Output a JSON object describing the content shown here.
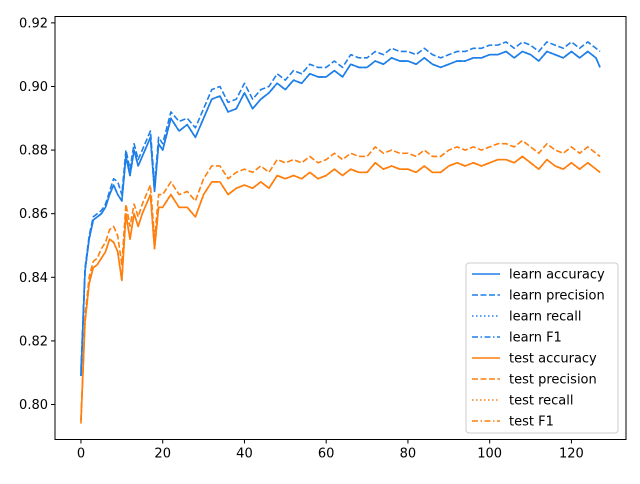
{
  "chart_data": {
    "type": "line",
    "title": "",
    "xlabel": "",
    "ylabel": "",
    "xlim": [
      -6.35,
      133.35
    ],
    "ylim": [
      0.789,
      0.922
    ],
    "xticks": [
      0,
      20,
      40,
      60,
      80,
      100,
      120
    ],
    "xtick_labels": [
      "0",
      "20",
      "40",
      "60",
      "80",
      "100",
      "120"
    ],
    "yticks": [
      0.8,
      0.82,
      0.84,
      0.86,
      0.88,
      0.9,
      0.92
    ],
    "ytick_labels": [
      "0.80",
      "0.82",
      "0.84",
      "0.86",
      "0.88",
      "0.90",
      "0.92"
    ],
    "grid": false,
    "legend_position": "lower-right",
    "colors": {
      "learn": "#1f7fe8",
      "test": "#ff7f0e"
    },
    "series": [
      {
        "name": "learn accuracy",
        "style": "solid",
        "color": "#1f7fe8"
      },
      {
        "name": "learn precision",
        "style": "dashed",
        "color": "#1f7fe8"
      },
      {
        "name": "learn recall",
        "style": "dotted",
        "color": "#1f7fe8"
      },
      {
        "name": "learn F1",
        "style": "dashdot",
        "color": "#1f7fe8"
      },
      {
        "name": "test accuracy",
        "style": "solid",
        "color": "#ff7f0e"
      },
      {
        "name": "test precision",
        "style": "dashed",
        "color": "#ff7f0e"
      },
      {
        "name": "test recall",
        "style": "dotted",
        "color": "#ff7f0e"
      },
      {
        "name": "test F1",
        "style": "dashdot",
        "color": "#ff7f0e"
      }
    ],
    "x": [
      0,
      1,
      2,
      3,
      4,
      5,
      6,
      7,
      8,
      9,
      10,
      11,
      12,
      13,
      14,
      15,
      16,
      17,
      18,
      19,
      20,
      22,
      24,
      26,
      28,
      30,
      32,
      34,
      36,
      38,
      40,
      42,
      44,
      46,
      48,
      50,
      52,
      54,
      56,
      58,
      60,
      62,
      64,
      66,
      68,
      70,
      72,
      74,
      76,
      78,
      80,
      82,
      84,
      86,
      88,
      90,
      92,
      94,
      96,
      98,
      100,
      102,
      104,
      106,
      108,
      110,
      112,
      114,
      116,
      118,
      120,
      122,
      124,
      126,
      127
    ],
    "learn_accuracy": [
      0.809,
      0.842,
      0.852,
      0.858,
      0.859,
      0.86,
      0.862,
      0.866,
      0.869,
      0.866,
      0.864,
      0.878,
      0.872,
      0.88,
      0.875,
      0.878,
      0.881,
      0.884,
      0.867,
      0.882,
      0.88,
      0.89,
      0.886,
      0.888,
      0.884,
      0.89,
      0.896,
      0.897,
      0.892,
      0.893,
      0.898,
      0.893,
      0.896,
      0.898,
      0.901,
      0.899,
      0.902,
      0.901,
      0.904,
      0.903,
      0.903,
      0.905,
      0.903,
      0.907,
      0.906,
      0.906,
      0.908,
      0.907,
      0.909,
      0.908,
      0.908,
      0.907,
      0.909,
      0.907,
      0.906,
      0.907,
      0.908,
      0.908,
      0.909,
      0.909,
      0.91,
      0.91,
      0.911,
      0.909,
      0.911,
      0.91,
      0.908,
      0.911,
      0.91,
      0.909,
      0.911,
      0.909,
      0.911,
      0.909,
      0.906
    ],
    "learn_precision": [
      0.811,
      0.843,
      0.853,
      0.859,
      0.86,
      0.861,
      0.863,
      0.867,
      0.871,
      0.87,
      0.866,
      0.88,
      0.874,
      0.882,
      0.877,
      0.88,
      0.883,
      0.886,
      0.869,
      0.884,
      0.882,
      0.892,
      0.889,
      0.89,
      0.887,
      0.893,
      0.899,
      0.9,
      0.895,
      0.896,
      0.901,
      0.896,
      0.899,
      0.9,
      0.904,
      0.902,
      0.905,
      0.904,
      0.907,
      0.906,
      0.906,
      0.908,
      0.906,
      0.91,
      0.909,
      0.909,
      0.911,
      0.91,
      0.912,
      0.911,
      0.911,
      0.91,
      0.912,
      0.91,
      0.909,
      0.91,
      0.911,
      0.911,
      0.912,
      0.912,
      0.913,
      0.913,
      0.914,
      0.912,
      0.914,
      0.913,
      0.911,
      0.914,
      0.913,
      0.912,
      0.914,
      0.912,
      0.914,
      0.912,
      0.911
    ],
    "learn_recall": [
      0.809,
      0.842,
      0.852,
      0.858,
      0.859,
      0.86,
      0.862,
      0.866,
      0.869,
      0.866,
      0.864,
      0.878,
      0.872,
      0.88,
      0.875,
      0.878,
      0.881,
      0.884,
      0.867,
      0.882,
      0.88,
      0.89,
      0.886,
      0.888,
      0.884,
      0.89,
      0.896,
      0.897,
      0.892,
      0.893,
      0.898,
      0.893,
      0.896,
      0.898,
      0.901,
      0.899,
      0.902,
      0.901,
      0.904,
      0.903,
      0.903,
      0.905,
      0.903,
      0.907,
      0.906,
      0.906,
      0.908,
      0.907,
      0.909,
      0.908,
      0.908,
      0.907,
      0.909,
      0.907,
      0.906,
      0.907,
      0.908,
      0.908,
      0.909,
      0.909,
      0.91,
      0.91,
      0.911,
      0.909,
      0.911,
      0.91,
      0.908,
      0.911,
      0.91,
      0.909,
      0.911,
      0.909,
      0.911,
      0.909,
      0.906
    ],
    "learn_f1": [
      0.809,
      0.842,
      0.852,
      0.858,
      0.859,
      0.86,
      0.862,
      0.866,
      0.869,
      0.866,
      0.864,
      0.878,
      0.872,
      0.88,
      0.875,
      0.878,
      0.881,
      0.884,
      0.867,
      0.882,
      0.88,
      0.89,
      0.886,
      0.888,
      0.884,
      0.89,
      0.896,
      0.897,
      0.892,
      0.893,
      0.898,
      0.893,
      0.896,
      0.898,
      0.901,
      0.899,
      0.902,
      0.901,
      0.904,
      0.903,
      0.903,
      0.905,
      0.903,
      0.907,
      0.906,
      0.906,
      0.908,
      0.907,
      0.909,
      0.908,
      0.908,
      0.907,
      0.909,
      0.907,
      0.906,
      0.907,
      0.908,
      0.908,
      0.909,
      0.909,
      0.91,
      0.91,
      0.911,
      0.909,
      0.911,
      0.91,
      0.908,
      0.911,
      0.91,
      0.909,
      0.911,
      0.909,
      0.911,
      0.909,
      0.906
    ],
    "test_accuracy": [
      0.795,
      0.826,
      0.838,
      0.843,
      0.844,
      0.846,
      0.848,
      0.852,
      0.851,
      0.848,
      0.839,
      0.86,
      0.852,
      0.86,
      0.856,
      0.86,
      0.863,
      0.866,
      0.849,
      0.862,
      0.862,
      0.866,
      0.862,
      0.862,
      0.859,
      0.866,
      0.87,
      0.87,
      0.866,
      0.868,
      0.869,
      0.868,
      0.87,
      0.868,
      0.872,
      0.871,
      0.872,
      0.871,
      0.873,
      0.871,
      0.872,
      0.874,
      0.872,
      0.874,
      0.873,
      0.873,
      0.876,
      0.874,
      0.875,
      0.874,
      0.874,
      0.873,
      0.875,
      0.873,
      0.873,
      0.875,
      0.876,
      0.875,
      0.876,
      0.875,
      0.876,
      0.877,
      0.877,
      0.876,
      0.878,
      0.876,
      0.874,
      0.877,
      0.875,
      0.874,
      0.876,
      0.874,
      0.876,
      0.874,
      0.873
    ],
    "test_precision": [
      0.794,
      0.828,
      0.84,
      0.845,
      0.846,
      0.849,
      0.851,
      0.855,
      0.856,
      0.853,
      0.844,
      0.863,
      0.856,
      0.863,
      0.859,
      0.863,
      0.866,
      0.869,
      0.852,
      0.866,
      0.866,
      0.87,
      0.866,
      0.867,
      0.864,
      0.871,
      0.875,
      0.875,
      0.871,
      0.873,
      0.874,
      0.873,
      0.875,
      0.873,
      0.877,
      0.876,
      0.877,
      0.876,
      0.878,
      0.876,
      0.877,
      0.879,
      0.877,
      0.879,
      0.878,
      0.878,
      0.881,
      0.879,
      0.88,
      0.879,
      0.879,
      0.878,
      0.88,
      0.878,
      0.878,
      0.88,
      0.881,
      0.88,
      0.881,
      0.88,
      0.881,
      0.882,
      0.882,
      0.881,
      0.883,
      0.881,
      0.879,
      0.882,
      0.88,
      0.879,
      0.881,
      0.879,
      0.881,
      0.879,
      0.878
    ],
    "test_recall": [
      0.795,
      0.826,
      0.838,
      0.843,
      0.844,
      0.846,
      0.848,
      0.852,
      0.851,
      0.848,
      0.839,
      0.86,
      0.852,
      0.86,
      0.856,
      0.86,
      0.863,
      0.866,
      0.849,
      0.862,
      0.862,
      0.866,
      0.862,
      0.862,
      0.859,
      0.866,
      0.87,
      0.87,
      0.866,
      0.868,
      0.869,
      0.868,
      0.87,
      0.868,
      0.872,
      0.871,
      0.872,
      0.871,
      0.873,
      0.871,
      0.872,
      0.874,
      0.872,
      0.874,
      0.873,
      0.873,
      0.876,
      0.874,
      0.875,
      0.874,
      0.874,
      0.873,
      0.875,
      0.873,
      0.873,
      0.875,
      0.876,
      0.875,
      0.876,
      0.875,
      0.876,
      0.877,
      0.877,
      0.876,
      0.878,
      0.876,
      0.874,
      0.877,
      0.875,
      0.874,
      0.876,
      0.874,
      0.876,
      0.874,
      0.873
    ],
    "test_f1": [
      0.795,
      0.826,
      0.838,
      0.843,
      0.844,
      0.846,
      0.848,
      0.852,
      0.851,
      0.848,
      0.839,
      0.86,
      0.852,
      0.86,
      0.856,
      0.86,
      0.863,
      0.866,
      0.849,
      0.862,
      0.862,
      0.866,
      0.862,
      0.862,
      0.859,
      0.866,
      0.87,
      0.87,
      0.866,
      0.868,
      0.869,
      0.868,
      0.87,
      0.868,
      0.872,
      0.871,
      0.872,
      0.871,
      0.873,
      0.871,
      0.872,
      0.874,
      0.872,
      0.874,
      0.873,
      0.873,
      0.876,
      0.874,
      0.875,
      0.874,
      0.874,
      0.873,
      0.875,
      0.873,
      0.873,
      0.875,
      0.876,
      0.875,
      0.876,
      0.875,
      0.876,
      0.877,
      0.877,
      0.876,
      0.878,
      0.876,
      0.874,
      0.877,
      0.875,
      0.874,
      0.876,
      0.874,
      0.876,
      0.874,
      0.873
    ]
  }
}
